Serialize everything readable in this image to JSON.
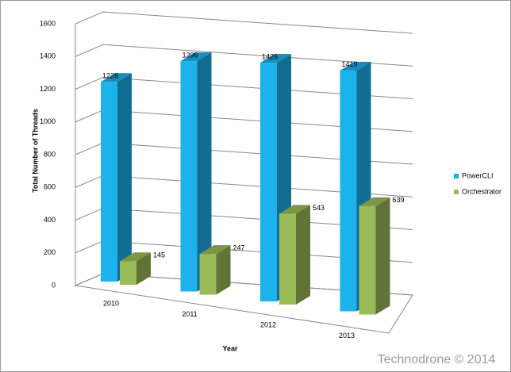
{
  "chart_data": {
    "type": "bar3d",
    "y_label": "Total Number of Threads",
    "x_label": "Year",
    "categories": [
      "2010",
      "2011",
      "2012",
      "2013"
    ],
    "series": [
      {
        "name": "PowerCLI",
        "color": "#1cb2ec",
        "values": [
          1228,
          1396,
          1426,
          1419
        ]
      },
      {
        "name": "Orchestrator",
        "color": "#9bbb59",
        "values": [
          145,
          247,
          543,
          639
        ]
      }
    ],
    "ylim": [
      0,
      1600
    ],
    "yticks": [
      0,
      200,
      400,
      600,
      800,
      1000,
      1200,
      1400,
      1600
    ],
    "grid": true,
    "legend": "right"
  },
  "watermark": "Technodrone © 2014"
}
